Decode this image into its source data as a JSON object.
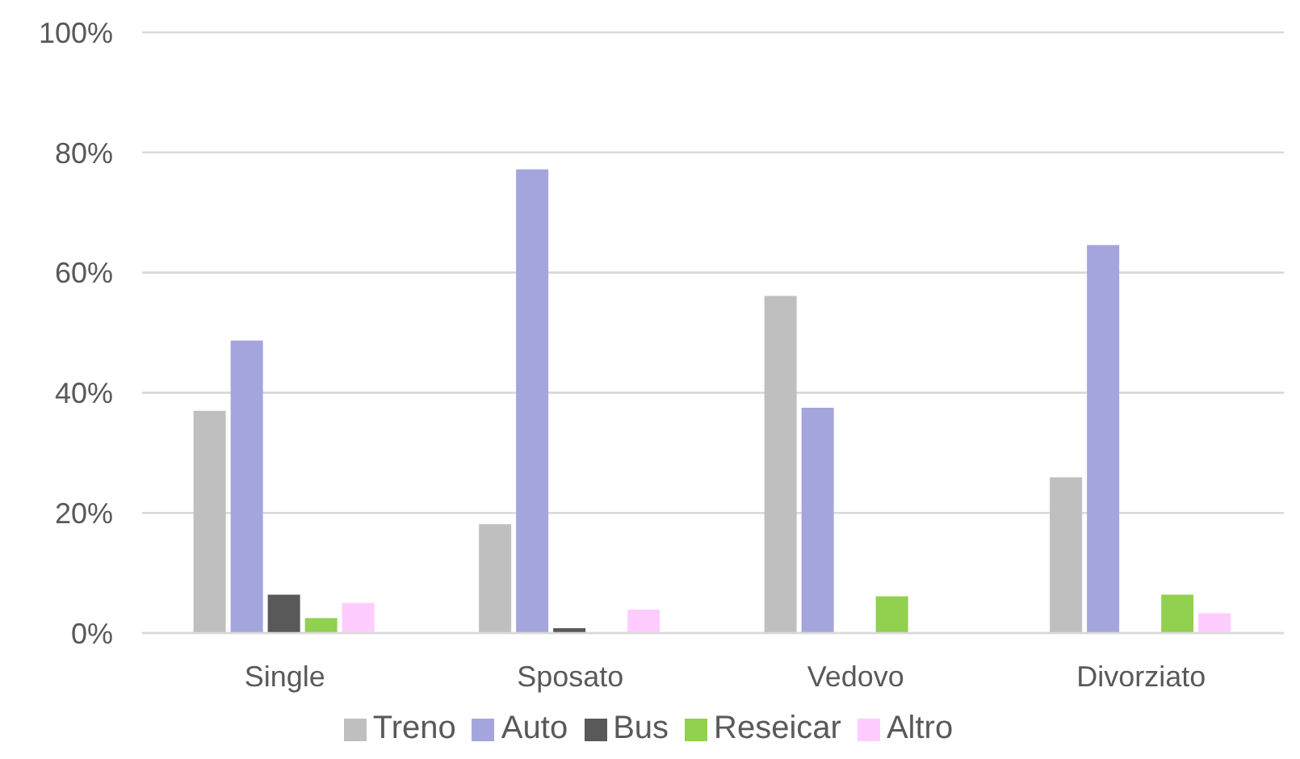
{
  "chart_data": {
    "type": "bar",
    "categories": [
      "Single",
      "Sposato",
      "Vedovo",
      "Divorziato"
    ],
    "series": [
      {
        "name": "Treno",
        "color": "#bfbfbf",
        "values": [
          37.0,
          18.1,
          56.1,
          25.9
        ]
      },
      {
        "name": "Auto",
        "color": "#a5a5de",
        "values": [
          48.7,
          77.2,
          37.5,
          64.6
        ]
      },
      {
        "name": "Bus",
        "color": "#595959",
        "values": [
          6.4,
          0.8,
          0,
          0
        ]
      },
      {
        "name": "Reseicar",
        "color": "#92d050",
        "values": [
          2.5,
          0,
          6.1,
          6.4
        ]
      },
      {
        "name": "Altro",
        "color": "#ffccff",
        "values": [
          5.0,
          3.9,
          0,
          3.3
        ]
      }
    ],
    "ylim": [
      0,
      100
    ],
    "yticks": [
      {
        "value": 0,
        "label": "0%"
      },
      {
        "value": 20,
        "label": "20%"
      },
      {
        "value": 40,
        "label": "40%"
      },
      {
        "value": 60,
        "label": "60%"
      },
      {
        "value": 80,
        "label": "80%"
      },
      {
        "value": 100,
        "label": "100%"
      }
    ],
    "grid": "y",
    "legend": "bottom"
  }
}
